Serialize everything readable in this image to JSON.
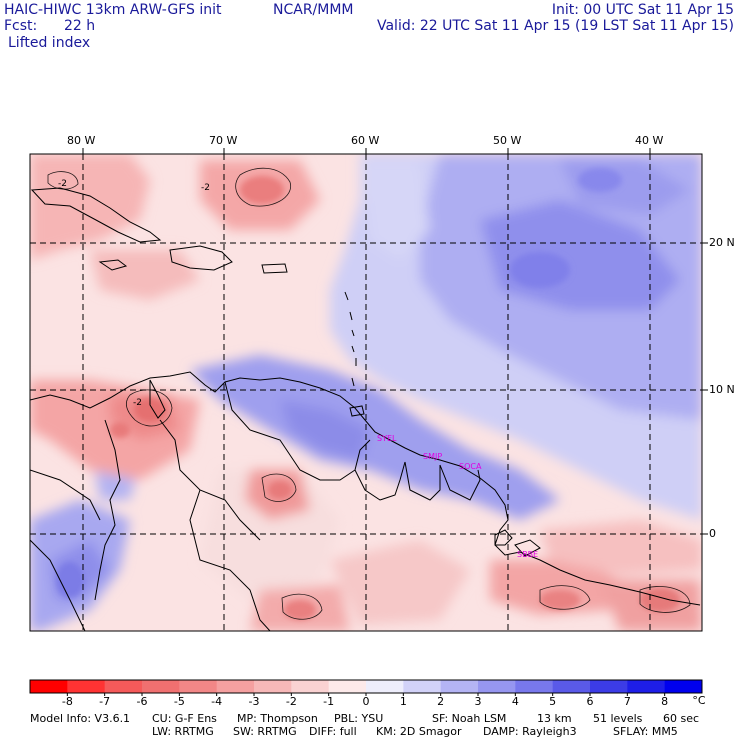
{
  "header": {
    "title_left": "HAIC-HIWC 13km ARW-GFS init",
    "org": "NCAR/MMM",
    "init": "Init: 00 UTC Sat 11 Apr 15",
    "fcst_label": "Fcst:",
    "fcst_value": "22 h",
    "valid": "Valid: 22 UTC Sat 11 Apr 15 (19 LST Sat 11 Apr 15)",
    "field": "Lifted index"
  },
  "axes": {
    "lon_labels": [
      "80 W",
      "70 W",
      "60 W",
      "50 W",
      "40 W"
    ],
    "lat_labels": [
      "20 N",
      "10 N",
      "0"
    ]
  },
  "contour_labels": [
    "-2",
    "-2",
    "-2"
  ],
  "stations": [
    "SYEL",
    "SMJP",
    "SOCA",
    "SBBE"
  ],
  "colorbar": {
    "ticks": [
      "-8",
      "-7",
      "-6",
      "-5",
      "-4",
      "-3",
      "-2",
      "-1",
      "0",
      "1",
      "2",
      "3",
      "4",
      "5",
      "6",
      "7",
      "8"
    ],
    "unit": "°C",
    "colors": [
      "#ff0000",
      "#ff3333",
      "#f55a5a",
      "#f07070",
      "#f28787",
      "#f5a0a0",
      "#f7b8b8",
      "#fad2d2",
      "#fdeaea",
      "#eeeefc",
      "#d2d2f8",
      "#b4b4f4",
      "#9696f0",
      "#7878ec",
      "#5a5ae8",
      "#3c3ce6",
      "#1e1ee8",
      "#0000ee"
    ]
  },
  "footer": {
    "line1": [
      "Model Info: V3.6.1",
      "CU: G-F Ens",
      "MP: Thompson",
      "PBL: YSU",
      "SF: Noah LSM",
      "13 km",
      "51 levels",
      "60 sec"
    ],
    "line2": [
      "LW: RRTMG",
      "SW: RRTMG",
      "DIFF: full",
      "KM: 2D Smagor",
      "DAMP: Rayleigh3",
      "SFLAY: MM5"
    ]
  },
  "colors": {
    "unstable": "#f5a3a3",
    "neutral": "#fbe4e4",
    "stable": "#b8b8f2",
    "very_stable": "#9a9aee",
    "text": "#1a1a9a"
  }
}
